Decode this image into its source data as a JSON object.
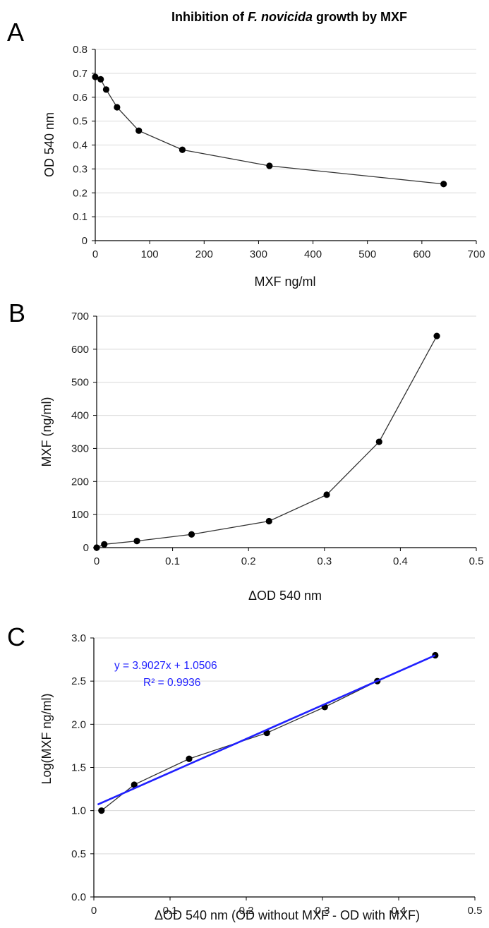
{
  "figure": {
    "title_parts": [
      "Inhibition  of ",
      "F. novicida",
      " growth  by MXF"
    ]
  },
  "chart_data": [
    {
      "panel": "A",
      "type": "line",
      "xlabel": "MXF ng/ml",
      "ylabel": "OD 540 nm",
      "xlim": [
        0,
        700
      ],
      "ylim": [
        0,
        0.8
      ],
      "xticks": [
        0,
        100,
        200,
        300,
        400,
        500,
        600,
        700
      ],
      "yticks": [
        0,
        0.1,
        0.2,
        0.3,
        0.4,
        0.5,
        0.6,
        0.7,
        0.8
      ],
      "xtick_labels": [
        "0",
        "100",
        "200",
        "300",
        "400",
        "500",
        "600",
        "700"
      ],
      "ytick_labels": [
        "0",
        "0.1",
        "0.2",
        "0.3",
        "0.4",
        "0.5",
        "0.6",
        "0.7",
        "0.8"
      ],
      "grid": "horizontal",
      "legend": "none",
      "series": [
        {
          "color": "#000000",
          "x": [
            0,
            10,
            20,
            40,
            80,
            160,
            320,
            640
          ],
          "y": [
            0.685,
            0.675,
            0.632,
            0.558,
            0.46,
            0.38,
            0.313,
            0.237
          ]
        }
      ]
    },
    {
      "panel": "B",
      "type": "line",
      "xlabel": "ΔOD 540 nm",
      "ylabel": "MXF (ng/ml)",
      "xlim": [
        0,
        0.5
      ],
      "ylim": [
        0,
        700
      ],
      "xticks": [
        0,
        0.1,
        0.2,
        0.3,
        0.4,
        0.5
      ],
      "yticks": [
        0,
        100,
        200,
        300,
        400,
        500,
        600,
        700
      ],
      "xtick_labels": [
        "0",
        "0.1",
        "0.2",
        "0.3",
        "0.4",
        "0.5"
      ],
      "ytick_labels": [
        "0",
        "100",
        "200",
        "300",
        "400",
        "500",
        "600",
        "700"
      ],
      "grid": "horizontal",
      "legend": "none",
      "series": [
        {
          "color": "#000000",
          "x": [
            0,
            0.01,
            0.053,
            0.125,
            0.227,
            0.303,
            0.372,
            0.448
          ],
          "y": [
            0,
            10,
            20,
            40,
            80,
            160,
            320,
            640
          ]
        }
      ]
    },
    {
      "panel": "C",
      "type": "line",
      "xlabel": "ΔOD 540 nm (OD without MXF - OD with MXF)",
      "ylabel": "Log(MXF ng/ml)",
      "xlim": [
        0,
        0.5
      ],
      "ylim": [
        0,
        3.0
      ],
      "xticks": [
        0,
        0.1,
        0.2,
        0.3,
        0.4,
        0.5
      ],
      "yticks": [
        0,
        0.5,
        1.0,
        1.5,
        2.0,
        2.5,
        3.0
      ],
      "xtick_labels": [
        "0",
        "0.1",
        "0.2",
        "0.3",
        "0.4",
        "0.5"
      ],
      "ytick_labels": [
        "0.0",
        "0.5",
        "1.0",
        "1.5",
        "2.0",
        "2.5",
        "3.0"
      ],
      "grid": "horizontal",
      "legend": "none",
      "series": [
        {
          "color": "#000000",
          "x": [
            0.01,
            0.053,
            0.125,
            0.227,
            0.303,
            0.372,
            0.448
          ],
          "y": [
            1.0,
            1.3,
            1.6,
            1.9,
            2.2,
            2.5,
            2.8
          ]
        }
      ],
      "trendline": {
        "color": "#2020ff",
        "slope": 3.9027,
        "intercept": 1.0506,
        "x_range": [
          0.005,
          0.448
        ],
        "equation": "y = 3.9027x + 1.0506",
        "r_squared": "R² = 0.9936"
      }
    }
  ]
}
